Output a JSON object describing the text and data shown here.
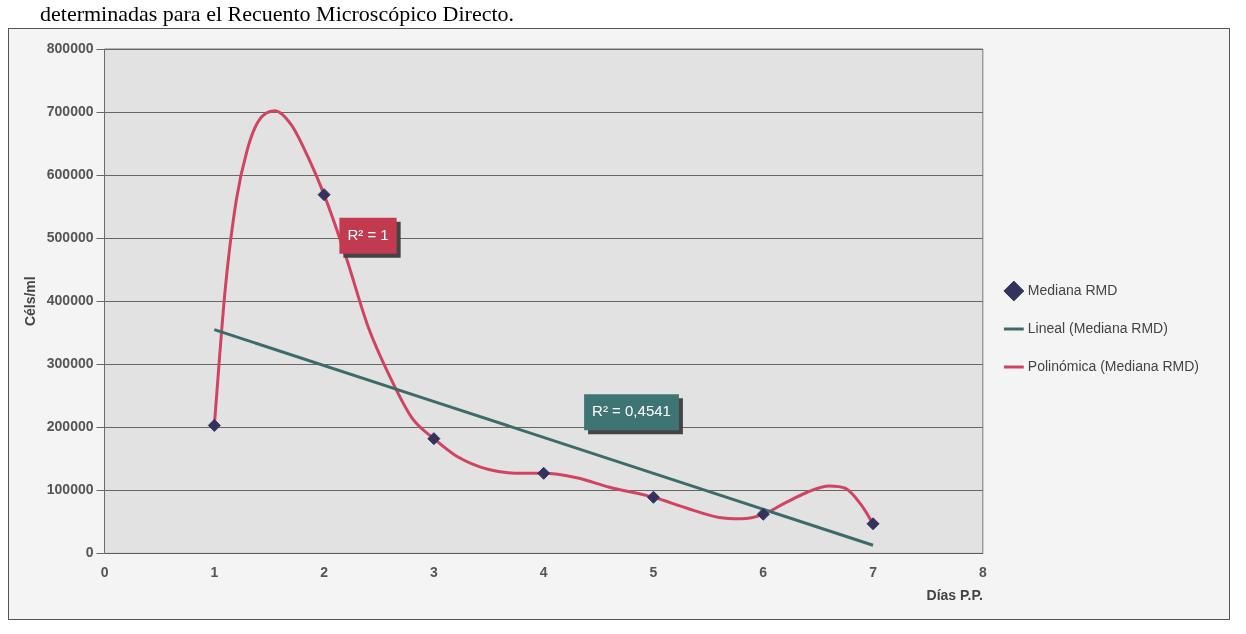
{
  "chart_data": {
    "type": "scatter",
    "xlabel": "Días P.P.",
    "ylabel": "Céls/ml",
    "xlim": [
      0,
      8
    ],
    "xticks": [
      0,
      1,
      2,
      3,
      4,
      5,
      6,
      7,
      8
    ],
    "ylim": [
      0,
      800000
    ],
    "yticks": [
      0,
      100000,
      200000,
      300000,
      400000,
      500000,
      600000,
      700000,
      800000
    ],
    "grid": "y",
    "legend": "right",
    "marker": "diamond",
    "series": [
      {
        "name": "Mediana RMD",
        "color": "#33335e",
        "x": [
          1,
          2,
          3,
          4,
          5,
          6,
          7
        ],
        "values": [
          203000,
          569000,
          182000,
          127000,
          89000,
          62000,
          47000
        ]
      },
      {
        "name": "Lineal (Mediana RMD)",
        "type": "line",
        "color": "#3d6b6b",
        "marker": "none",
        "x": [
          1,
          7
        ],
        "values": [
          355000,
          13000
        ]
      },
      {
        "name": "Polinómica (Mediana RMD)",
        "type": "line",
        "color": "#d04462",
        "marker": "none",
        "x": [
          1,
          1.1,
          1.2,
          1.3,
          1.4,
          1.55,
          1.7,
          1.85,
          2,
          2.2,
          2.4,
          2.6,
          2.8,
          3,
          3.2,
          3.5,
          3.8,
          4,
          4.3,
          4.6,
          5,
          5.3,
          5.6,
          5.8,
          6,
          6.2,
          6.4,
          6.6,
          6.75,
          6.9,
          7
        ],
        "values": [
          203000,
          420000,
          560000,
          640000,
          685000,
          702000,
          680000,
          630000,
          569000,
          470000,
          360000,
          280000,
          215000,
          182000,
          155000,
          133000,
          127000,
          127000,
          120000,
          105000,
          89000,
          72000,
          57000,
          55000,
          62000,
          80000,
          97000,
          107000,
          103000,
          75000,
          47000
        ]
      }
    ],
    "annotations": [
      "determinadas para el Recuento Microscópico Directo.",
      "R² = 1",
      "R² = 0,4541"
    ]
  }
}
